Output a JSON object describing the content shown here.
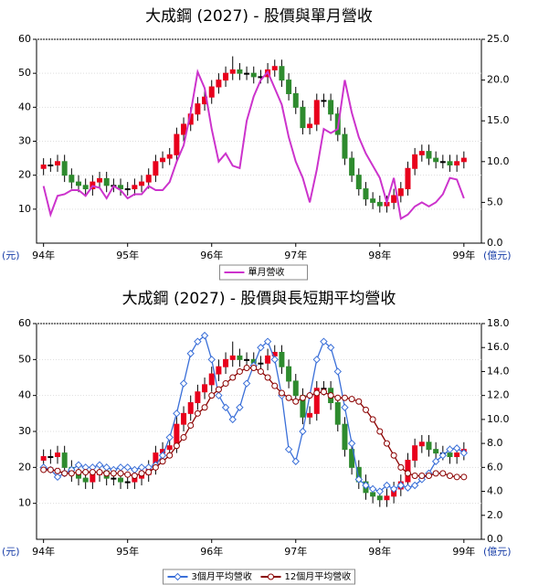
{
  "chart_data": [
    {
      "type": "candlestick",
      "title": "大成鋼 (2027) - 股價與單月營收",
      "x": [
        0,
        1,
        2,
        3,
        4,
        5,
        6,
        7,
        8,
        9,
        10,
        11,
        12,
        13,
        14,
        15,
        16,
        17,
        18,
        19,
        20,
        21,
        22,
        23,
        24,
        25,
        26,
        27,
        28,
        29,
        30,
        31,
        32,
        33,
        34,
        35,
        36,
        37,
        38,
        39,
        40,
        41,
        42,
        43,
        44,
        45,
        46,
        47,
        48,
        49,
        50,
        51,
        52,
        53,
        54,
        55,
        56,
        57,
        58,
        59,
        60
      ],
      "open": [
        22,
        23,
        23,
        24,
        20,
        18,
        17,
        16,
        18,
        19,
        17,
        17,
        16,
        16,
        17,
        18,
        20,
        24,
        25,
        26,
        32,
        35,
        38,
        41,
        43,
        46,
        48,
        50,
        51,
        50,
        50,
        49,
        49,
        51,
        52,
        48,
        44,
        40,
        34,
        35,
        42,
        42,
        38,
        32,
        25,
        20,
        16,
        13,
        12,
        11,
        12,
        14,
        16,
        22,
        26,
        27,
        25,
        24,
        24,
        23,
        24
      ],
      "high": [
        25,
        25,
        26,
        26,
        22,
        20,
        19,
        20,
        21,
        21,
        19,
        19,
        18,
        19,
        20,
        22,
        26,
        27,
        28,
        34,
        37,
        40,
        43,
        45,
        48,
        50,
        52,
        55,
        53,
        52,
        52,
        51,
        53,
        54,
        54,
        50,
        46,
        42,
        37,
        44,
        44,
        44,
        40,
        34,
        27,
        22,
        18,
        15,
        14,
        14,
        16,
        18,
        24,
        28,
        29,
        29,
        27,
        26,
        26,
        26,
        27
      ],
      "low": [
        20,
        21,
        21,
        18,
        16,
        15,
        14,
        14,
        16,
        15,
        15,
        14,
        14,
        14,
        15,
        16,
        18,
        22,
        23,
        24,
        30,
        33,
        36,
        39,
        41,
        44,
        46,
        48,
        48,
        48,
        47,
        47,
        47,
        49,
        46,
        42,
        38,
        32,
        32,
        33,
        40,
        36,
        30,
        23,
        18,
        14,
        11,
        10,
        9,
        9,
        10,
        12,
        14,
        20,
        24,
        23,
        22,
        22,
        21,
        21,
        22
      ],
      "close": [
        23,
        23,
        24,
        20,
        18,
        17,
        16,
        18,
        19,
        17,
        17,
        16,
        16,
        17,
        18,
        20,
        24,
        25,
        26,
        32,
        35,
        38,
        41,
        43,
        46,
        48,
        50,
        51,
        50,
        50,
        49,
        49,
        51,
        52,
        48,
        44,
        40,
        34,
        35,
        42,
        42,
        38,
        32,
        25,
        20,
        16,
        13,
        12,
        11,
        12,
        14,
        16,
        22,
        26,
        27,
        25,
        24,
        24,
        23,
        24,
        25
      ],
      "up_color": "#e8001c",
      "down_color": "#2e8b2e",
      "series": [
        {
          "name": "單月營收",
          "color": "#cc33cc",
          "axis": "y2",
          "marker": "none",
          "values": [
            7,
            3.5,
            5.8,
            6,
            6.5,
            6.5,
            5.8,
            7,
            6.8,
            5.5,
            7,
            6.5,
            5.5,
            6,
            6,
            7,
            6.5,
            6.5,
            7.5,
            10,
            12,
            16,
            21,
            19,
            14,
            10,
            11,
            9.5,
            9.2,
            15,
            18,
            20,
            21,
            19,
            17,
            13,
            10,
            8,
            5,
            9,
            14,
            13.5,
            14,
            20,
            16,
            13,
            11,
            9.5,
            8,
            5,
            8,
            3,
            3.5,
            4.5,
            5,
            4.5,
            5,
            6,
            8,
            7.8,
            5.5
          ]
        }
      ],
      "xlim": [
        -1,
        62.5
      ],
      "xticks": [
        {
          "value": 0,
          "label": "94年"
        },
        {
          "value": 12,
          "label": "95年"
        },
        {
          "value": 24,
          "label": "96年"
        },
        {
          "value": 36,
          "label": "97年"
        },
        {
          "value": 48,
          "label": "98年"
        },
        {
          "value": 60,
          "label": "99年"
        }
      ],
      "ylim": [
        0,
        60
      ],
      "yticks": [
        10,
        20,
        30,
        40,
        50,
        60
      ],
      "y2lim": [
        0,
        25
      ],
      "y2ticks": [
        {
          "value": 0,
          "label": "0.0"
        },
        {
          "value": 5,
          "label": "5.0"
        },
        {
          "value": 10,
          "label": "10.0"
        },
        {
          "value": 15,
          "label": "15.0"
        },
        {
          "value": 20,
          "label": "20.0"
        },
        {
          "value": 25,
          "label": "25.0"
        }
      ],
      "y_label": "(元)",
      "y2_label": "(億元)",
      "grid": true,
      "legend": "bottom"
    },
    {
      "type": "candlestick",
      "title": "大成鋼 (2027) - 股價與長短期平均營收",
      "x": [
        0,
        1,
        2,
        3,
        4,
        5,
        6,
        7,
        8,
        9,
        10,
        11,
        12,
        13,
        14,
        15,
        16,
        17,
        18,
        19,
        20,
        21,
        22,
        23,
        24,
        25,
        26,
        27,
        28,
        29,
        30,
        31,
        32,
        33,
        34,
        35,
        36,
        37,
        38,
        39,
        40,
        41,
        42,
        43,
        44,
        45,
        46,
        47,
        48,
        49,
        50,
        51,
        52,
        53,
        54,
        55,
        56,
        57,
        58,
        59,
        60
      ],
      "open": [
        22,
        23,
        23,
        24,
        20,
        18,
        17,
        16,
        18,
        19,
        17,
        17,
        16,
        16,
        17,
        18,
        20,
        24,
        25,
        26,
        32,
        35,
        38,
        41,
        43,
        46,
        48,
        50,
        51,
        50,
        50,
        49,
        49,
        51,
        52,
        48,
        44,
        40,
        34,
        35,
        42,
        42,
        38,
        32,
        25,
        20,
        16,
        13,
        12,
        11,
        12,
        14,
        16,
        22,
        26,
        27,
        25,
        24,
        24,
        23,
        24
      ],
      "high": [
        25,
        25,
        26,
        26,
        22,
        20,
        19,
        20,
        21,
        21,
        19,
        19,
        18,
        19,
        20,
        22,
        26,
        27,
        28,
        34,
        37,
        40,
        43,
        45,
        48,
        50,
        52,
        55,
        53,
        52,
        52,
        51,
        53,
        54,
        54,
        50,
        46,
        42,
        37,
        44,
        44,
        44,
        40,
        34,
        27,
        22,
        18,
        15,
        14,
        14,
        16,
        18,
        24,
        28,
        29,
        29,
        27,
        26,
        26,
        26,
        27
      ],
      "low": [
        20,
        21,
        21,
        18,
        16,
        15,
        14,
        14,
        16,
        15,
        15,
        14,
        14,
        14,
        15,
        16,
        18,
        22,
        23,
        24,
        30,
        33,
        36,
        39,
        41,
        44,
        46,
        48,
        48,
        48,
        47,
        47,
        47,
        49,
        46,
        42,
        38,
        32,
        32,
        33,
        40,
        36,
        30,
        23,
        18,
        14,
        11,
        10,
        9,
        9,
        10,
        12,
        14,
        20,
        24,
        23,
        22,
        22,
        21,
        21,
        22
      ],
      "close": [
        23,
        23,
        24,
        20,
        18,
        17,
        16,
        18,
        19,
        17,
        17,
        16,
        16,
        17,
        18,
        20,
        24,
        25,
        26,
        32,
        35,
        38,
        41,
        43,
        46,
        48,
        50,
        51,
        50,
        50,
        49,
        49,
        51,
        52,
        48,
        44,
        40,
        34,
        35,
        42,
        42,
        38,
        32,
        25,
        20,
        16,
        13,
        12,
        11,
        12,
        14,
        16,
        22,
        26,
        27,
        25,
        24,
        24,
        23,
        24,
        25
      ],
      "up_color": "#e8001c",
      "down_color": "#2e8b2e",
      "series": [
        {
          "name": "3個月平均營收",
          "color": "#3a6fd8",
          "axis": "y2",
          "marker": "diamond",
          "values": [
            6,
            5.8,
            5.2,
            5.5,
            5.8,
            6.2,
            6,
            6,
            6.2,
            6,
            5.8,
            6,
            6,
            5.8,
            6,
            6,
            6.2,
            7,
            8.5,
            10.5,
            13,
            15.5,
            16.5,
            17,
            15,
            12,
            11,
            10,
            11,
            13,
            14.5,
            16,
            16.5,
            15,
            12,
            7.5,
            6.5,
            9,
            12,
            15,
            16.5,
            16,
            14,
            11,
            8,
            5,
            4.5,
            4.2,
            4,
            4.5,
            4.2,
            4.5,
            4.3,
            4.5,
            5,
            5.5,
            6.5,
            7,
            7.5,
            7.6,
            7.2
          ]
        },
        {
          "name": "12個月平均營收",
          "color": "#8b0000",
          "axis": "y2",
          "marker": "circle",
          "values": [
            5.8,
            5.8,
            5.7,
            5.5,
            5.5,
            5.6,
            5.6,
            5.6,
            5.6,
            5.5,
            5.5,
            5.5,
            5.4,
            5.3,
            5.5,
            5.6,
            6,
            6.5,
            7,
            7.8,
            8.5,
            9.5,
            10.5,
            11,
            12,
            12.5,
            13,
            13.5,
            14,
            14.3,
            14.3,
            14,
            13.5,
            12.8,
            12.2,
            11.8,
            11.5,
            11.8,
            12,
            12.2,
            12.3,
            12,
            11.8,
            11.8,
            11.7,
            11.5,
            10.8,
            10,
            9,
            8,
            7,
            6,
            5.5,
            5.3,
            5.3,
            5.3,
            5.5,
            5.5,
            5.3,
            5.2,
            5.2
          ]
        }
      ],
      "xlim": [
        -1,
        62.5
      ],
      "xticks": [
        {
          "value": 0,
          "label": "94年"
        },
        {
          "value": 12,
          "label": "95年"
        },
        {
          "value": 24,
          "label": "96年"
        },
        {
          "value": 36,
          "label": "97年"
        },
        {
          "value": 48,
          "label": "98年"
        },
        {
          "value": 60,
          "label": "99年"
        }
      ],
      "ylim": [
        0,
        60
      ],
      "yticks": [
        10,
        20,
        30,
        40,
        50,
        60
      ],
      "y2lim": [
        0,
        18
      ],
      "y2ticks": [
        {
          "value": 0,
          "label": "0.0"
        },
        {
          "value": 2,
          "label": "2.0"
        },
        {
          "value": 4,
          "label": "4.0"
        },
        {
          "value": 6,
          "label": "6.0"
        },
        {
          "value": 8,
          "label": "8.0"
        },
        {
          "value": 10,
          "label": "10.0"
        },
        {
          "value": 12,
          "label": "12.0"
        },
        {
          "value": 14,
          "label": "14.0"
        },
        {
          "value": 16,
          "label": "16.0"
        },
        {
          "value": 18,
          "label": "18.0"
        }
      ],
      "y_label": "(元)",
      "y2_label": "(億元)",
      "grid": true,
      "legend": "bottom"
    }
  ]
}
